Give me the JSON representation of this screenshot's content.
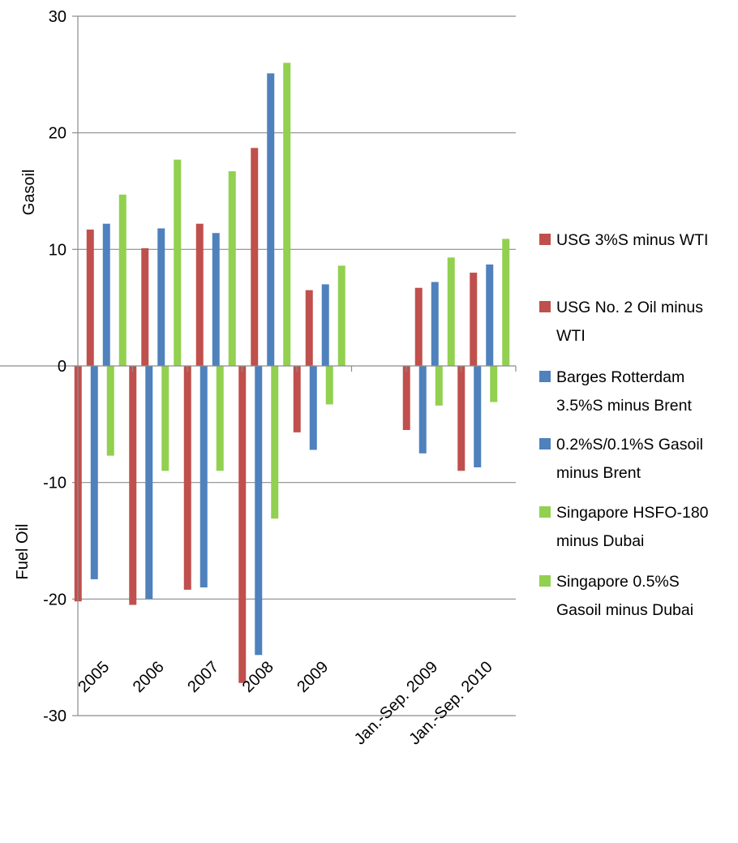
{
  "chart_data": {
    "type": "bar",
    "categories": [
      "2005",
      "2006",
      "2007",
      "2008",
      "2009",
      "",
      "Jan.-Sep. 2009",
      "Jan.-Sep. 2010"
    ],
    "ylim": [
      -30,
      30
    ],
    "yticks": [
      30,
      20,
      10,
      0,
      -10,
      -20,
      -30
    ],
    "grid": true,
    "legend_position": "right",
    "ylabel_top": "Gasoil",
    "ylabel_bottom": "Fuel Oil",
    "series": [
      {
        "name": "USG 3%S minus WTI",
        "color": "#C0504D",
        "values": [
          -20.2,
          -20.5,
          -19.2,
          -27.2,
          -5.7,
          null,
          -5.5,
          -9.0
        ]
      },
      {
        "name": "USG No. 2 Oil minus WTI",
        "color": "#C0504D",
        "values": [
          11.7,
          10.1,
          12.2,
          18.7,
          6.5,
          null,
          6.7,
          8.0
        ]
      },
      {
        "name": "Barges Rotterdam 3.5%S minus Brent",
        "color": "#4F81BD",
        "values": [
          -18.3,
          -20.0,
          -19.0,
          -24.8,
          -7.2,
          null,
          -7.5,
          -8.7
        ]
      },
      {
        "name": "0.2%S/0.1%S Gasoil minus Brent",
        "color": "#4F81BD",
        "values": [
          12.2,
          11.8,
          11.4,
          25.1,
          7.0,
          null,
          7.2,
          8.7
        ]
      },
      {
        "name": "Singapore HSFO-180 minus Dubai",
        "color": "#92D050",
        "values": [
          -7.7,
          -9.0,
          -9.0,
          -13.1,
          -3.3,
          null,
          -3.4,
          -3.1
        ]
      },
      {
        "name": "Singapore 0.5%S Gasoil minus Dubai",
        "color": "#92D050",
        "values": [
          14.7,
          17.7,
          16.7,
          26.0,
          8.6,
          null,
          9.3,
          10.9
        ]
      }
    ]
  },
  "legend": [
    {
      "lines": [
        "USG 3%S minus WTI"
      ],
      "color": "#C0504D"
    },
    {
      "lines": [
        "USG No. 2 Oil minus",
        "WTI"
      ],
      "color": "#C0504D"
    },
    {
      "lines": [
        "Barges Rotterdam",
        "3.5%S minus Brent"
      ],
      "color": "#4F81BD"
    },
    {
      "lines": [
        "0.2%S/0.1%S Gasoil",
        "minus Brent"
      ],
      "color": "#4F81BD"
    },
    {
      "lines": [
        "Singapore HSFO-180",
        "minus Dubai"
      ],
      "color": "#92D050"
    },
    {
      "lines": [
        "Singapore 0.5%S",
        "Gasoil minus Dubai"
      ],
      "color": "#92D050"
    }
  ]
}
